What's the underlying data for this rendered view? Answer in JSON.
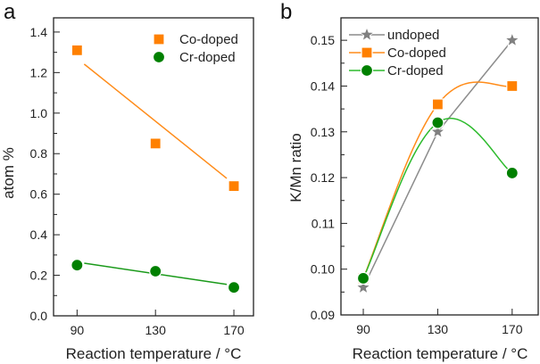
{
  "chart_data": [
    {
      "panel": "a",
      "type": "scatter",
      "title": "",
      "xlabel": "Reaction temperature / °C",
      "ylabel": "atom %",
      "xlim": [
        78,
        180
      ],
      "ylim": [
        0.0,
        1.47
      ],
      "xticks": [
        90,
        130,
        170
      ],
      "xtick_labels": [
        "90",
        "130",
        "170"
      ],
      "yticks": [
        0.0,
        0.2,
        0.4,
        0.6,
        0.8,
        1.0,
        1.2,
        1.4
      ],
      "ytick_labels": [
        "0.0",
        "0.2",
        "0.4",
        "0.6",
        "0.8",
        "1.0",
        "1.2",
        "1.4"
      ],
      "grid": false,
      "legend": "top-right",
      "x": [
        90,
        130,
        170
      ],
      "series": [
        {
          "name": "Co-doped",
          "marker": "square",
          "color": "#ff8000",
          "values": [
            1.31,
            0.85,
            0.64
          ],
          "fit_line": [
            1.27,
            0.65
          ]
        },
        {
          "name": "Cr-doped",
          "marker": "circle",
          "color": "#008000",
          "values": [
            0.25,
            0.22,
            0.14
          ],
          "fit_line": [
            0.265,
            0.15
          ]
        }
      ]
    },
    {
      "panel": "b",
      "type": "line",
      "title": "",
      "xlabel": "Reaction temperature / °C",
      "ylabel": "K/Mn ratio",
      "xlim": [
        78,
        184
      ],
      "ylim": [
        0.09,
        0.1549
      ],
      "xticks": [
        90,
        130,
        170
      ],
      "xtick_labels": [
        "90",
        "130",
        "170"
      ],
      "yticks": [
        0.09,
        0.1,
        0.11,
        0.12,
        0.13,
        0.14,
        0.15
      ],
      "ytick_labels": [
        "0.09",
        "0.10",
        "0.11",
        "0.12",
        "0.13",
        "0.14",
        "0.15"
      ],
      "grid": false,
      "legend": "top-left",
      "x": [
        90,
        130,
        170
      ],
      "series": [
        {
          "name": "undoped",
          "marker": "star",
          "color": "#808080",
          "line": "linear",
          "values": [
            0.096,
            0.13,
            0.15
          ]
        },
        {
          "name": "Co-doped",
          "marker": "square",
          "color": "#ff8000",
          "line": "spline",
          "values": [
            0.098,
            0.136,
            0.14
          ]
        },
        {
          "name": "Cr-doped",
          "marker": "circle",
          "color": "#008000",
          "line": "spline",
          "values": [
            0.098,
            0.132,
            0.121
          ]
        }
      ]
    }
  ]
}
